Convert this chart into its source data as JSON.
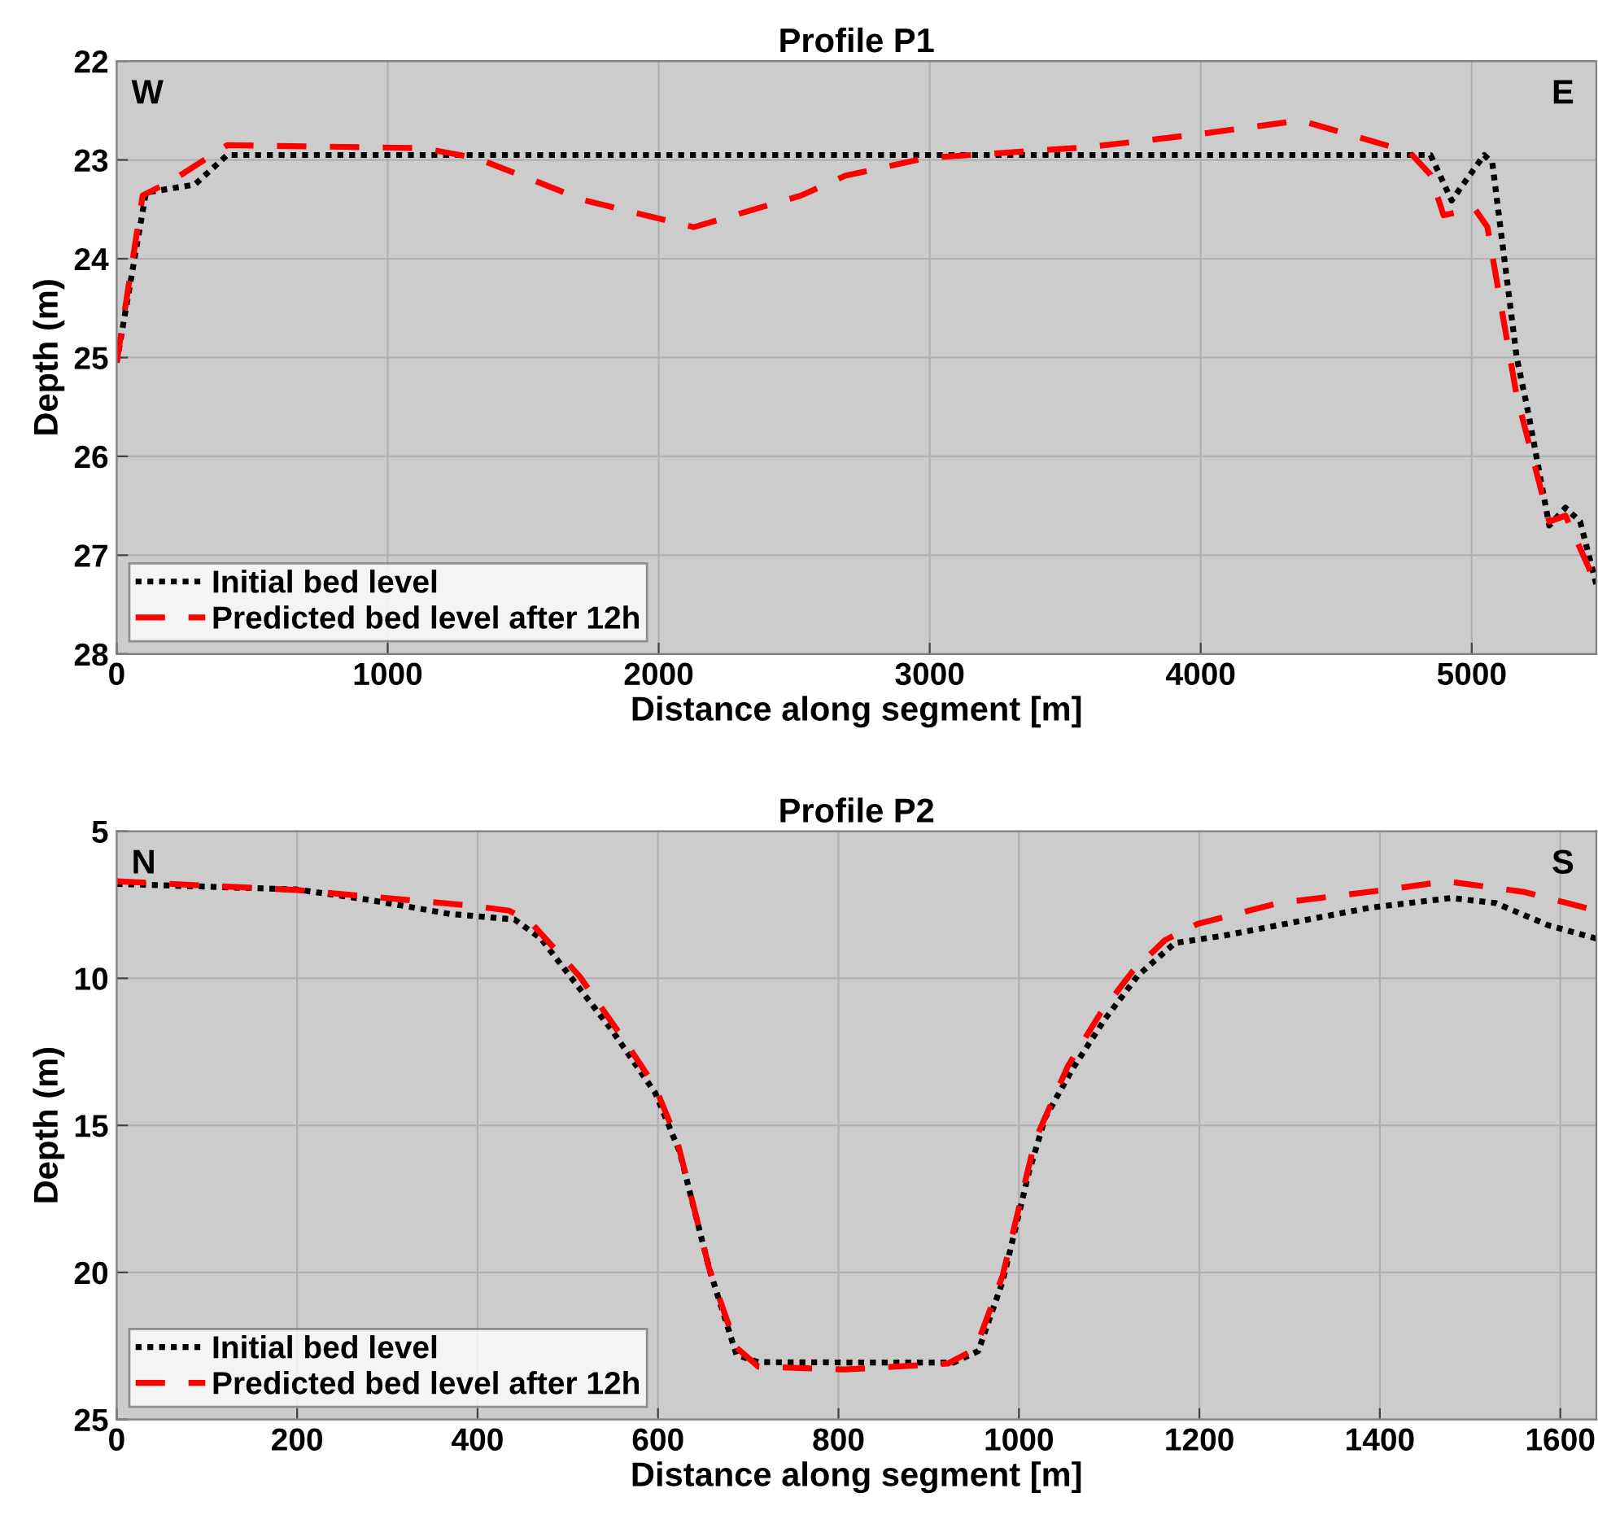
{
  "chart_data": [
    {
      "type": "line",
      "title": "Profile P1",
      "xlabel": "Distance along segment [m]",
      "ylabel": "Depth (m)",
      "xlim": [
        0,
        5460
      ],
      "xticks": [
        0,
        1000,
        2000,
        3000,
        4000,
        5000
      ],
      "ylim": [
        28,
        22
      ],
      "yticks": [
        22,
        23,
        24,
        25,
        26,
        27,
        28
      ],
      "grid": true,
      "legend": "bottom left",
      "annotations": [
        "W",
        "E"
      ],
      "series": [
        {
          "name": "Initial bed level",
          "color": "#000000",
          "line_style": "dotted",
          "x": [
            0,
            108,
            288,
            408,
            4848,
            4926,
            5046,
            5076,
            5166,
            5208,
            5286,
            5346,
            5400,
            5460
          ],
          "values": [
            25.05,
            23.33,
            23.25,
            22.95,
            22.95,
            23.41,
            22.95,
            23.03,
            25.0,
            25.55,
            26.7,
            26.52,
            26.66,
            27.3
          ]
        },
        {
          "name": "Predicted bed level after 12h",
          "color": "#ff0000",
          "line_style": "dashed",
          "x": [
            0,
            96,
            210,
            408,
            1128,
            1326,
            1728,
            2130,
            2526,
            2688,
            2988,
            3588,
            3990,
            4368,
            4770,
            4848,
            4896,
            5010,
            5058,
            5166,
            5286,
            5346,
            5460
          ],
          "values": [
            25.05,
            23.36,
            23.2,
            22.85,
            22.88,
            22.98,
            23.41,
            23.68,
            23.36,
            23.16,
            22.98,
            22.87,
            22.74,
            22.6,
            22.92,
            23.15,
            23.56,
            23.49,
            23.68,
            25.39,
            26.66,
            26.6,
            27.3
          ]
        }
      ]
    },
    {
      "type": "line",
      "title": "Profile P2",
      "xlabel": "Distance along segment [m]",
      "ylabel": "Depth (m)",
      "xlim": [
        0,
        1640
      ],
      "xticks": [
        0,
        200,
        400,
        600,
        800,
        1000,
        1200,
        1400,
        1600
      ],
      "ylim": [
        25,
        5
      ],
      "yticks": [
        5,
        10,
        15,
        20,
        25
      ],
      "grid": true,
      "legend": "bottom left",
      "annotations": [
        "N",
        "S"
      ],
      "series": [
        {
          "name": "Initial bed level",
          "color": "#000000",
          "line_style": "dotted",
          "x": [
            0,
            200,
            279,
            369,
            441,
            470,
            549,
            597,
            624,
            657,
            687,
            711,
            807,
            928,
            955,
            982,
            1011,
            1029,
            1059,
            1095,
            1132,
            1173,
            1227,
            1389,
            1479,
            1528,
            1587,
            1640
          ],
          "values": [
            6.79,
            6.98,
            7.33,
            7.81,
            8.0,
            8.64,
            11.77,
            13.9,
            15.9,
            19.9,
            22.8,
            23.05,
            23.06,
            23.06,
            22.67,
            20.3,
            16.6,
            14.75,
            13.1,
            11.4,
            9.9,
            8.8,
            8.55,
            7.6,
            7.27,
            7.44,
            8.2,
            8.65
          ]
        },
        {
          "name": "Predicted bed level after 12h",
          "color": "#ff0000",
          "line_style": "dashed",
          "x": [
            0,
            200,
            393,
            435,
            459,
            513,
            567,
            597,
            621,
            657,
            687,
            711,
            807,
            921,
            952,
            982,
            1018,
            1054,
            1090,
            1126,
            1162,
            1198,
            1288,
            1407,
            1474,
            1559,
            1640
          ],
          "values": [
            6.7,
            7.0,
            7.53,
            7.7,
            8.1,
            9.93,
            12.3,
            13.7,
            15.5,
            19.9,
            22.56,
            23.2,
            23.3,
            23.1,
            22.6,
            20.1,
            15.5,
            13.0,
            11.2,
            9.76,
            8.7,
            8.15,
            7.44,
            6.99,
            6.7,
            7.06,
            7.7
          ]
        }
      ]
    }
  ]
}
